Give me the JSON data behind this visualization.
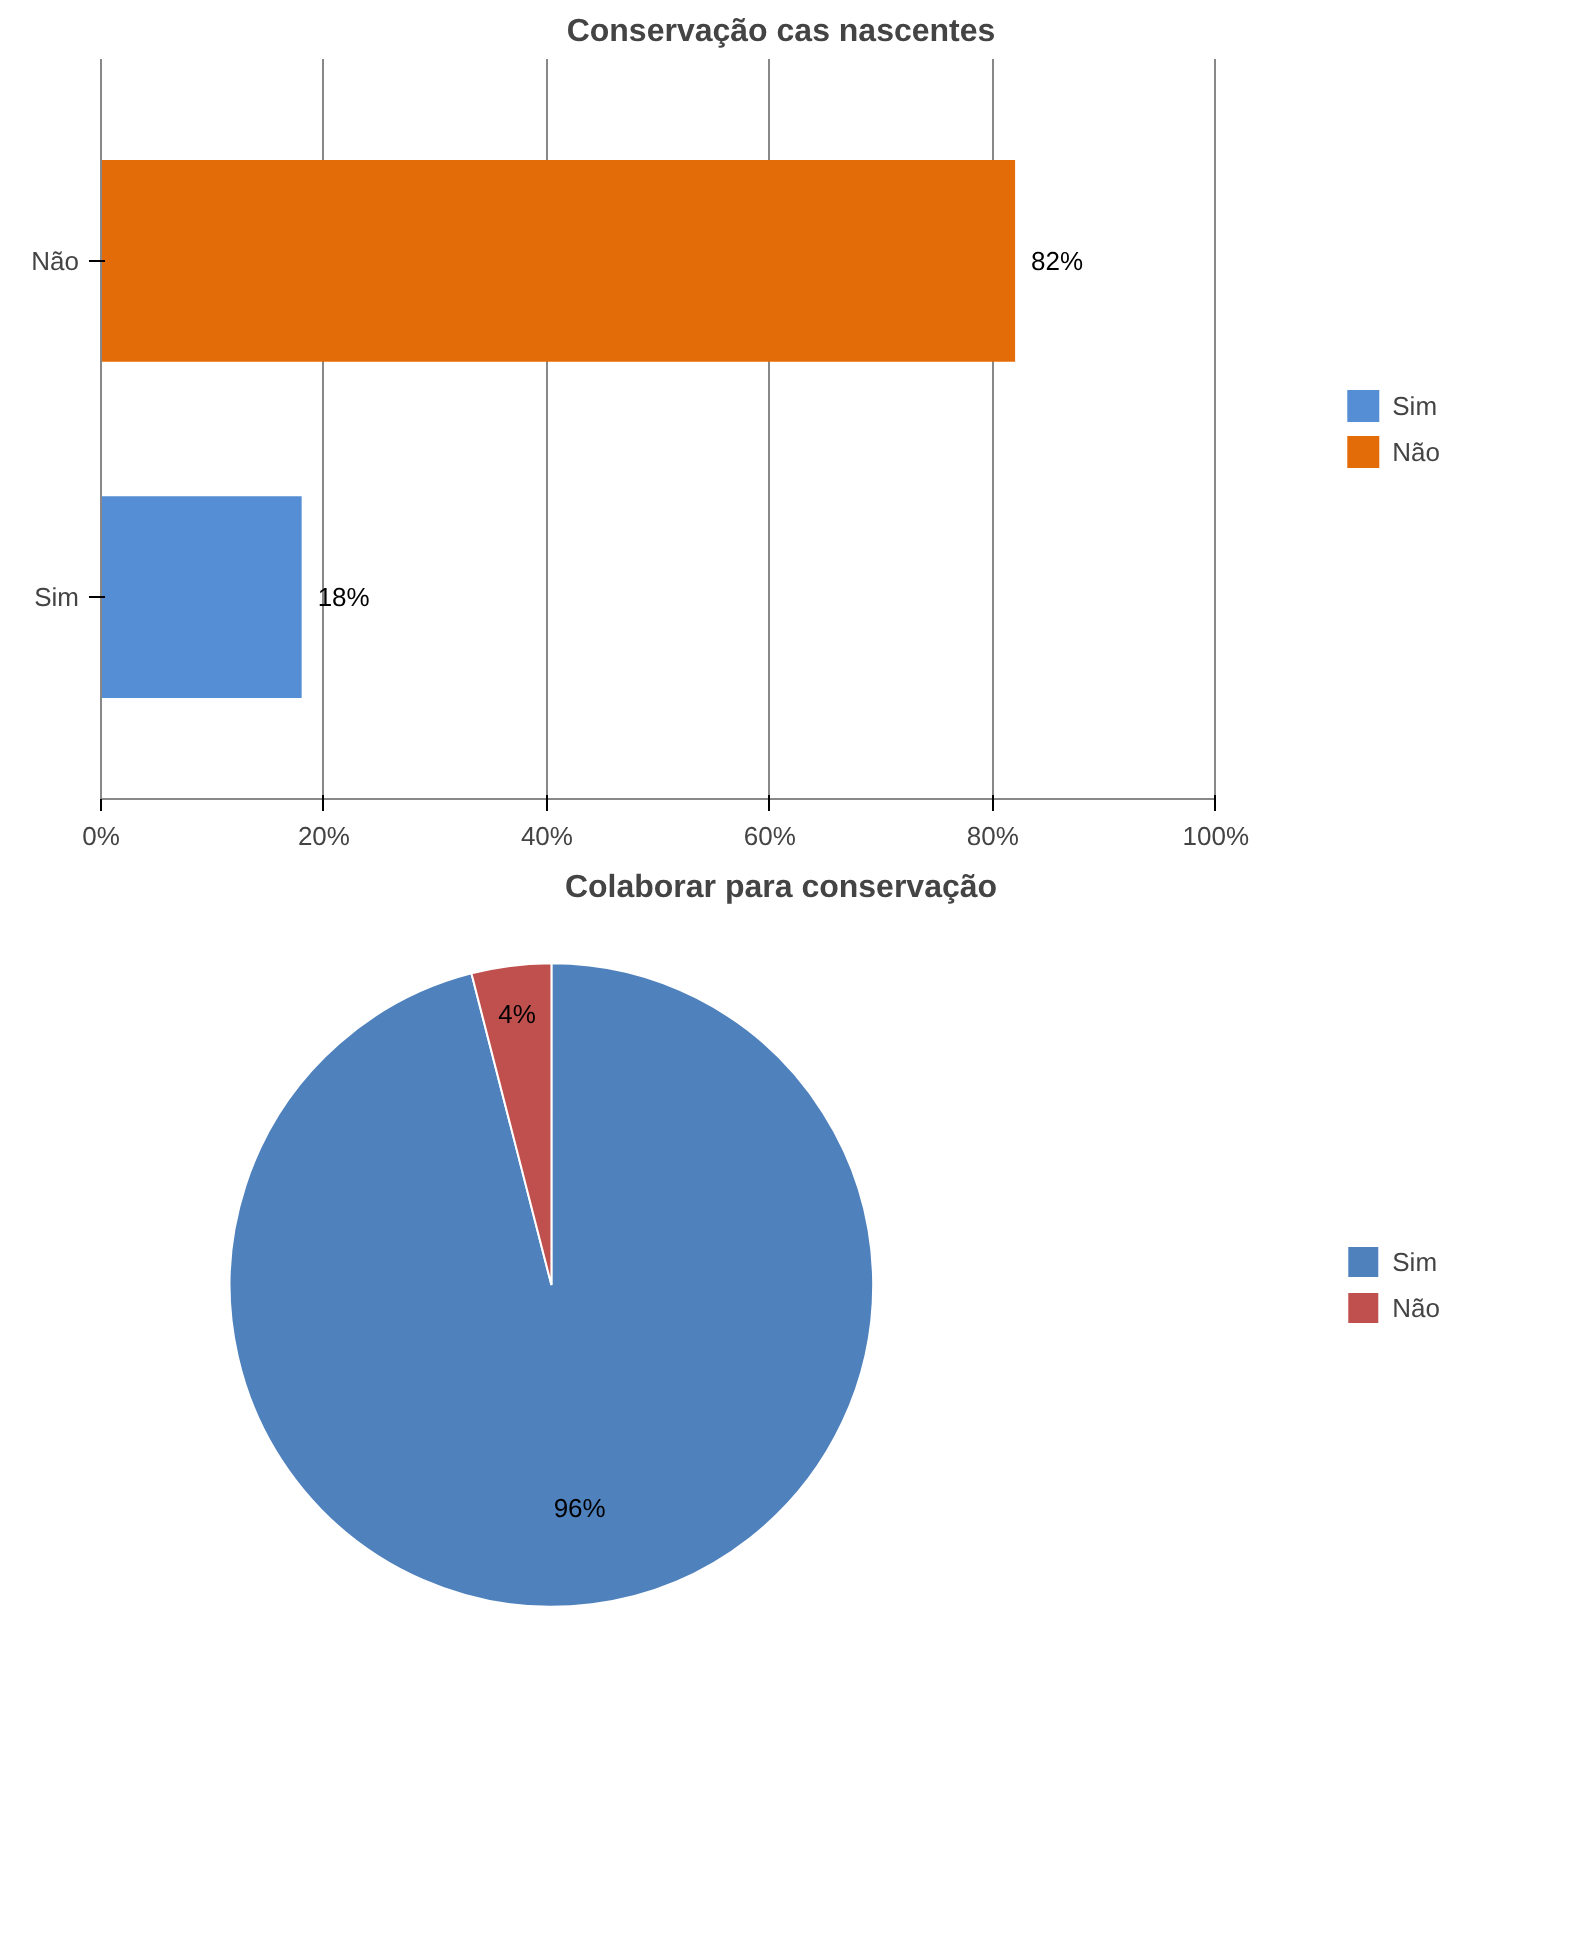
{
  "chart_data": [
    {
      "type": "bar",
      "orientation": "horizontal",
      "title": "Conservação cas nascentes",
      "categories": [
        "Não",
        "Sim"
      ],
      "series": [
        {
          "name": "Sim",
          "color": "#558ed5",
          "values": [
            null,
            18
          ],
          "value_labels": [
            null,
            "18%"
          ]
        },
        {
          "name": "Não",
          "color": "#e36c09",
          "values": [
            82,
            null
          ],
          "value_labels": [
            "82%",
            null
          ]
        }
      ],
      "xlim": [
        0,
        100
      ],
      "xticks": [
        {
          "value": 0,
          "label": "0%"
        },
        {
          "value": 20,
          "label": "20%"
        },
        {
          "value": 40,
          "label": "40%"
        },
        {
          "value": 60,
          "label": "60%"
        },
        {
          "value": 80,
          "label": "80%"
        },
        {
          "value": 100,
          "label": "100%"
        }
      ],
      "grid": "x",
      "legend": "right"
    },
    {
      "type": "pie",
      "title": "Colaborar para conservação",
      "categories": [
        "Sim",
        "Não"
      ],
      "values": [
        96,
        4
      ],
      "colors": [
        "#4f81bd",
        "#c0504d"
      ],
      "value_labels": [
        "96%",
        "4%"
      ],
      "legend": "right"
    }
  ]
}
